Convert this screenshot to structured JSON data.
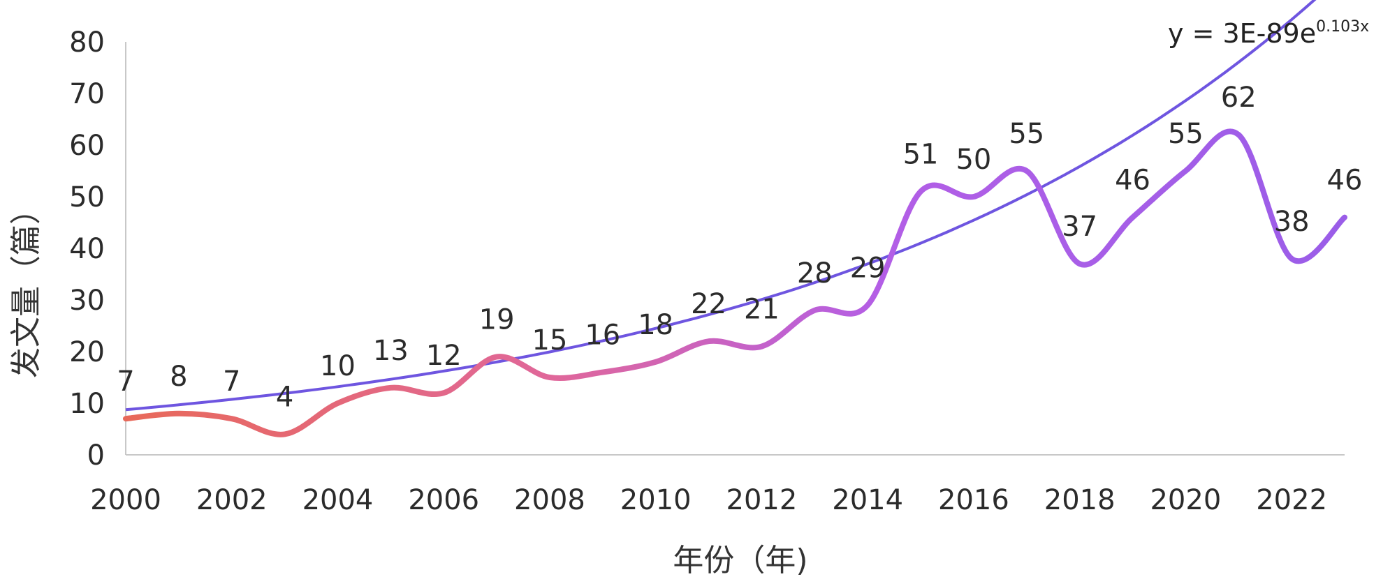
{
  "chart_data": {
    "type": "line",
    "title": "",
    "xlabel": "年份（年)",
    "ylabel": "发文量（篇）",
    "ylim": [
      0,
      80
    ],
    "xlim": [
      2000,
      2023
    ],
    "y_ticks": [
      "0",
      "10",
      "20",
      "30",
      "40",
      "50",
      "60",
      "70",
      "80"
    ],
    "x_ticks": [
      "2000",
      "2002",
      "2004",
      "2006",
      "2008",
      "2010",
      "2012",
      "2014",
      "2016",
      "2018",
      "2020",
      "2022"
    ],
    "grid": false,
    "legend": "none",
    "series": [
      {
        "x": [
          2000,
          2001,
          2002,
          2003,
          2004,
          2005,
          2006,
          2007,
          2008,
          2009,
          2010,
          2011,
          2012,
          2013,
          2014,
          2015,
          2016,
          2017,
          2018,
          2019,
          2020,
          2021,
          2022,
          2023
        ],
        "values": [
          7,
          8,
          7,
          4,
          10,
          13,
          12,
          19,
          15,
          16,
          18,
          22,
          21,
          28,
          29,
          51,
          50,
          55,
          37,
          46,
          55,
          62,
          38,
          46
        ],
        "labels": [
          "7",
          "8",
          "7",
          "4",
          "10",
          "13",
          "12",
          "19",
          "15",
          "16",
          "18",
          "22",
          "21",
          "28",
          "29",
          "51",
          "50",
          "55",
          "37",
          "46",
          "55",
          "62",
          "38",
          "46"
        ],
        "gradient": [
          "#e8695a",
          "#e0679a",
          "#b35ee6",
          "#9a5de8"
        ]
      }
    ],
    "trendline": {
      "type": "exponential",
      "equation_base": "y = 3E-89e",
      "equation_exponent": "0.103x",
      "a": 3e-89,
      "b": 0.103,
      "color": "#6e55e0"
    }
  }
}
